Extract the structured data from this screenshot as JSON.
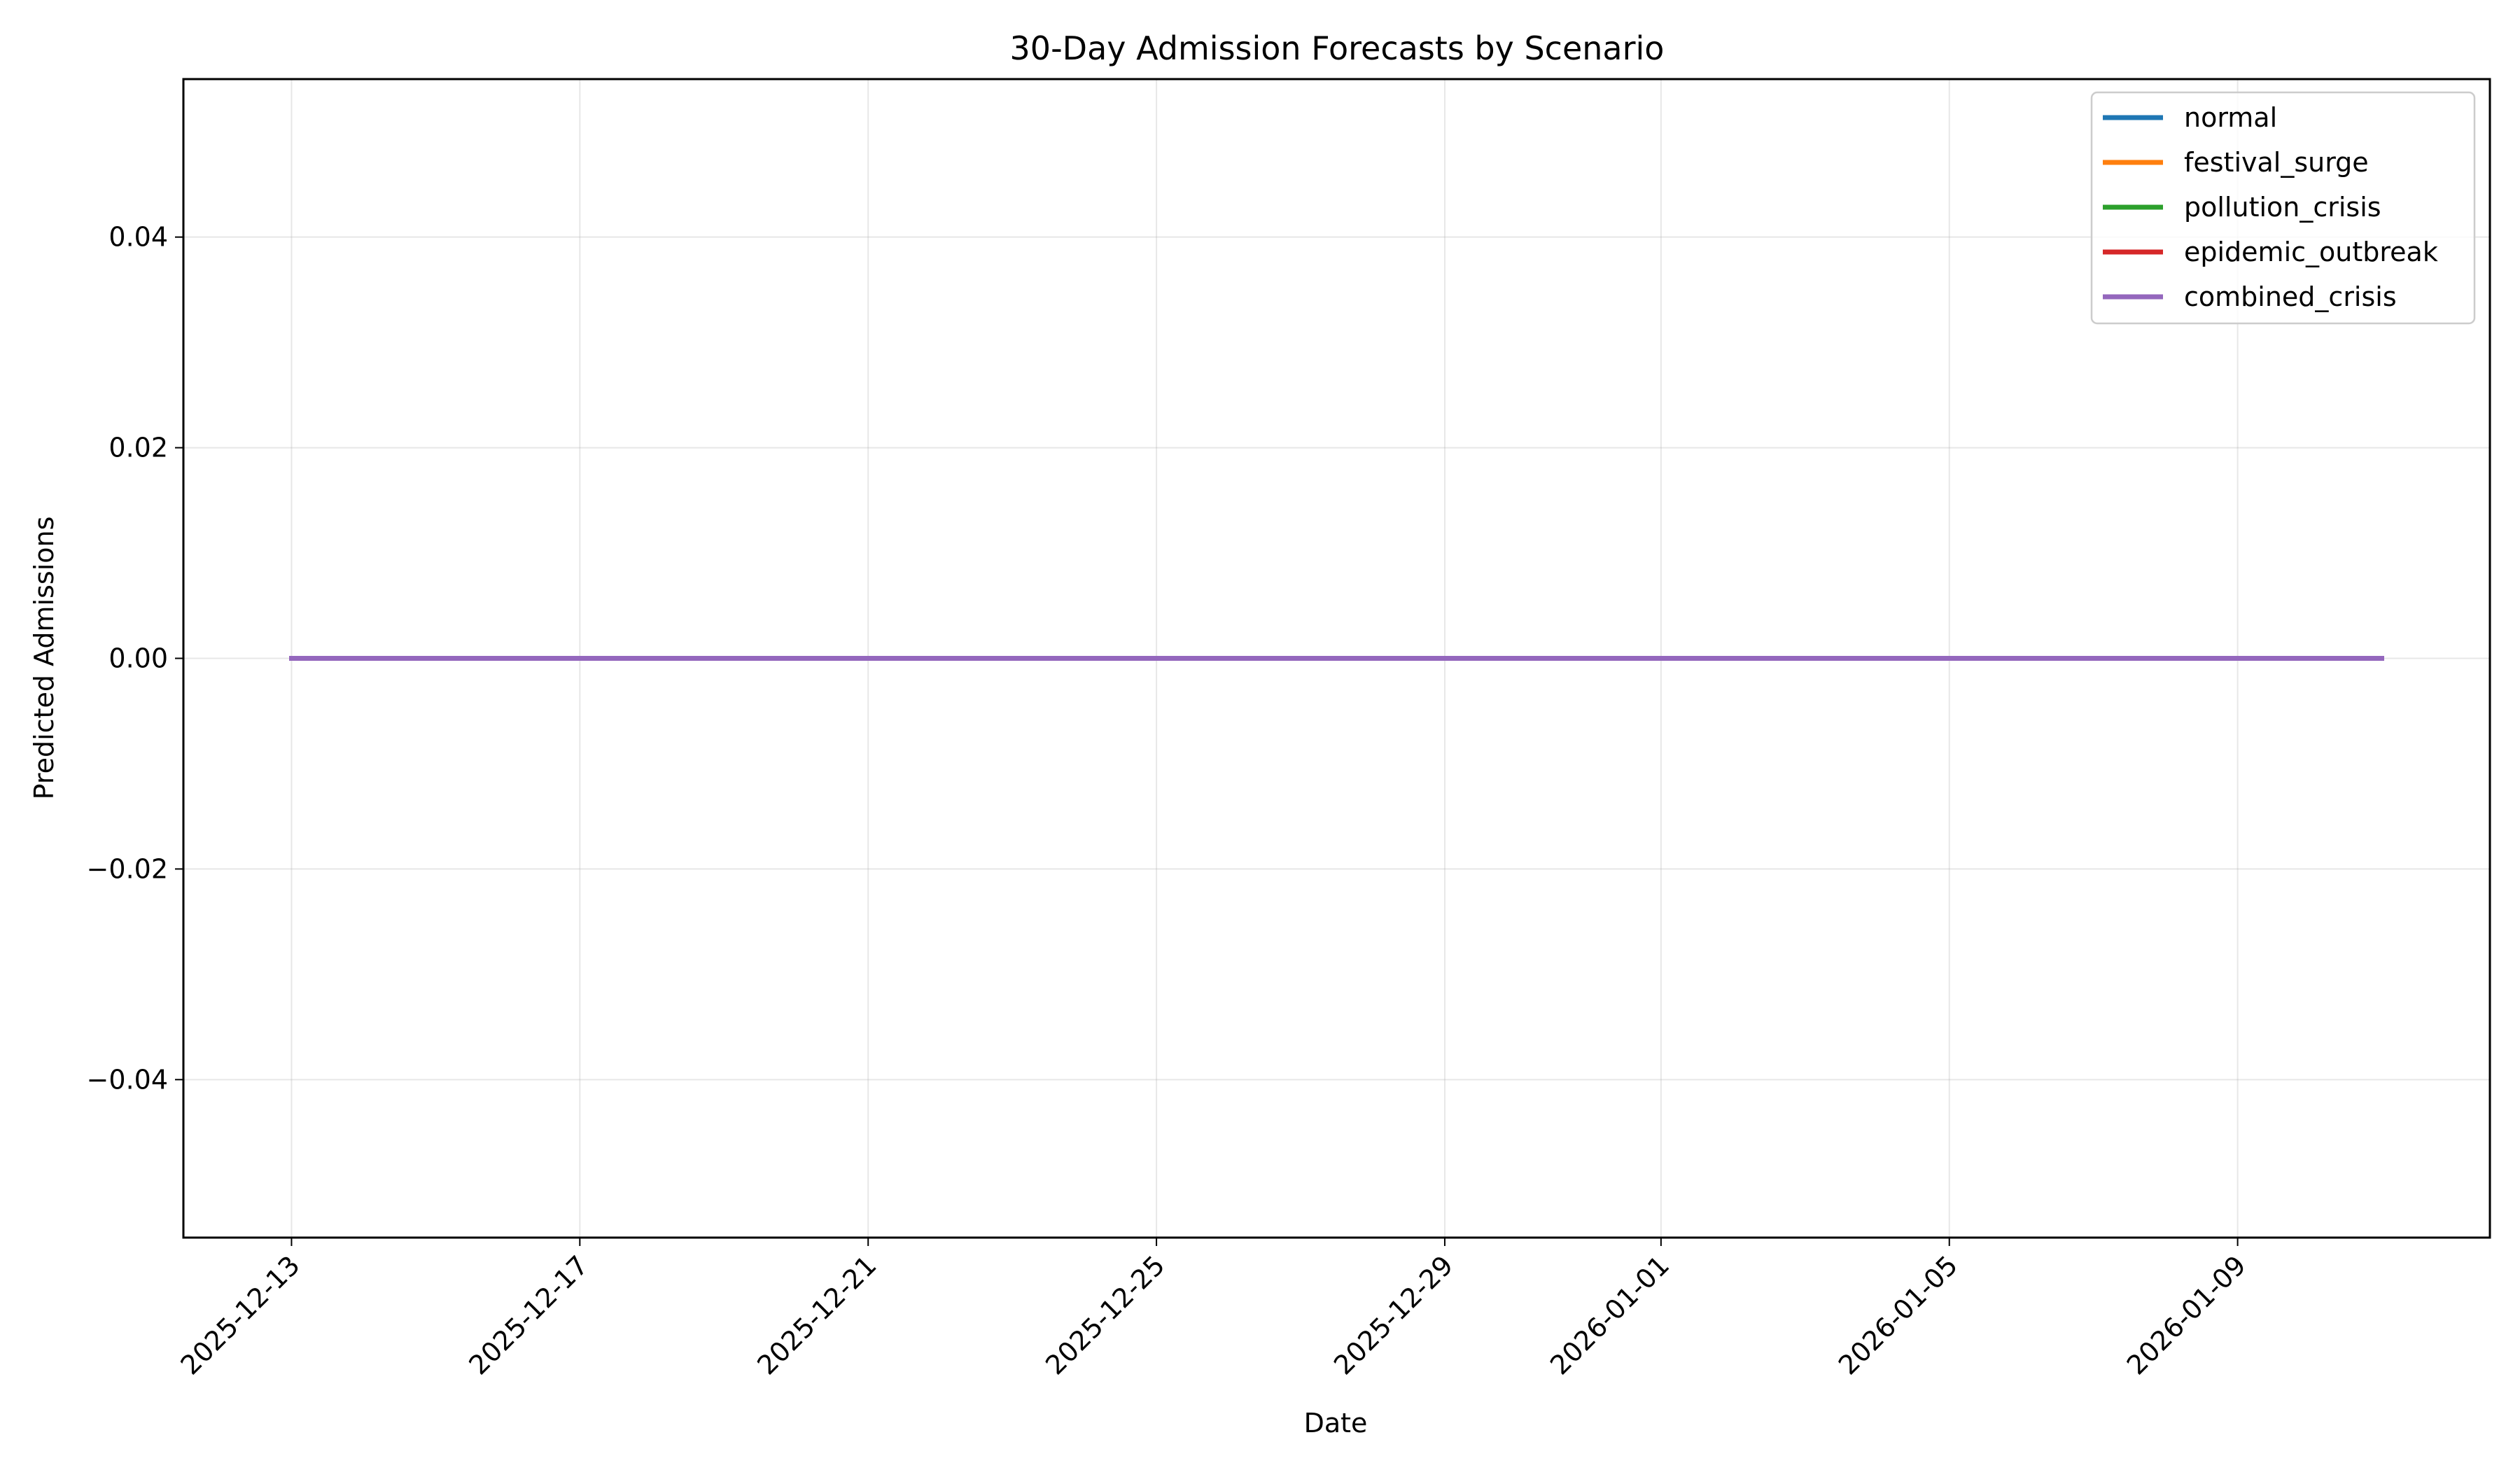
{
  "chart_data": {
    "type": "line",
    "title": "30-Day Admission Forecasts by Scenario",
    "xlabel": "Date",
    "ylabel": "Predicted Admissions",
    "x_start": "2025-12-13",
    "x_end": "2026-01-11",
    "xlim": [
      "2025-12-11 12:00",
      "2026-01-12 12:00"
    ],
    "ylim": [
      -0.055,
      0.055
    ],
    "x_ticks": [
      "2025-12-13",
      "2025-12-17",
      "2025-12-21",
      "2025-12-25",
      "2025-12-29",
      "2026-01-01",
      "2026-01-05",
      "2026-01-09"
    ],
    "y_ticks": [
      0.04,
      0.02,
      0.0,
      -0.02,
      -0.04
    ],
    "y_tick_labels": [
      "0.04",
      "0.02",
      "0.00",
      "−0.02",
      "−0.04"
    ],
    "grid": true,
    "legend_position": "top-right",
    "series": [
      {
        "name": "normal",
        "color": "#1f77b4",
        "values": [
          0,
          0,
          0,
          0,
          0,
          0,
          0,
          0,
          0,
          0,
          0,
          0,
          0,
          0,
          0,
          0,
          0,
          0,
          0,
          0,
          0,
          0,
          0,
          0,
          0,
          0,
          0,
          0,
          0,
          0
        ]
      },
      {
        "name": "festival_surge",
        "color": "#ff7f0e",
        "values": [
          0,
          0,
          0,
          0,
          0,
          0,
          0,
          0,
          0,
          0,
          0,
          0,
          0,
          0,
          0,
          0,
          0,
          0,
          0,
          0,
          0,
          0,
          0,
          0,
          0,
          0,
          0,
          0,
          0,
          0
        ]
      },
      {
        "name": "pollution_crisis",
        "color": "#2ca02c",
        "values": [
          0,
          0,
          0,
          0,
          0,
          0,
          0,
          0,
          0,
          0,
          0,
          0,
          0,
          0,
          0,
          0,
          0,
          0,
          0,
          0,
          0,
          0,
          0,
          0,
          0,
          0,
          0,
          0,
          0,
          0
        ]
      },
      {
        "name": "epidemic_outbreak",
        "color": "#d62728",
        "values": [
          0,
          0,
          0,
          0,
          0,
          0,
          0,
          0,
          0,
          0,
          0,
          0,
          0,
          0,
          0,
          0,
          0,
          0,
          0,
          0,
          0,
          0,
          0,
          0,
          0,
          0,
          0,
          0,
          0,
          0
        ]
      },
      {
        "name": "combined_crisis",
        "color": "#9467bd",
        "values": [
          0,
          0,
          0,
          0,
          0,
          0,
          0,
          0,
          0,
          0,
          0,
          0,
          0,
          0,
          0,
          0,
          0,
          0,
          0,
          0,
          0,
          0,
          0,
          0,
          0,
          0,
          0,
          0,
          0,
          0
        ]
      }
    ]
  }
}
